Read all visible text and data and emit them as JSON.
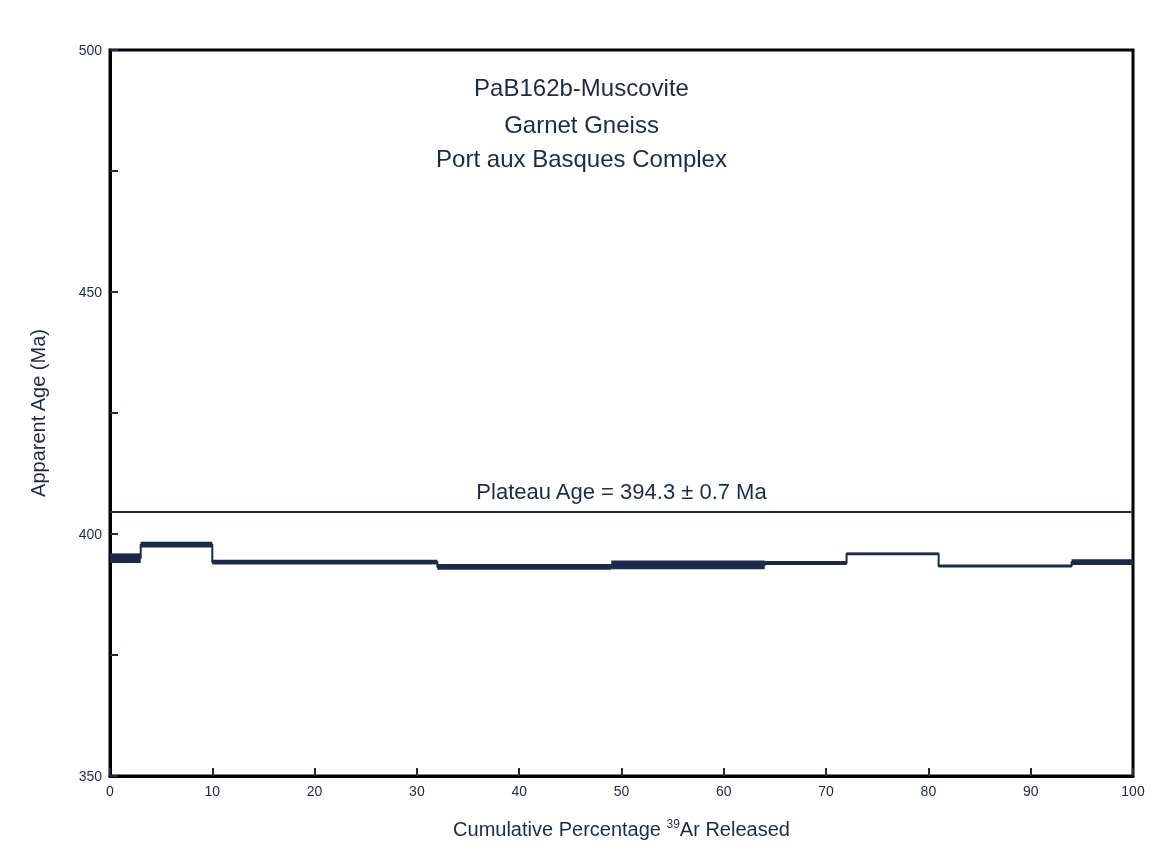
{
  "chart_data": {
    "type": "step",
    "title": "PaB162b-Muscovite",
    "subtitle": "Garnet Gneiss\nPort aux Basques Complex",
    "xlabel": "Cumulative Percentage $^{39}$Ar Released",
    "ylabel": "Apparent Age (Ma)",
    "series": [
      {
        "color": "#1c2a4a",
        "x": [
          0,
          3,
          10,
          32,
          49,
          64,
          72,
          81,
          94,
          100
        ],
        "values": [
          395.0,
          397.8,
          394.2,
          393.2,
          393.6,
          394.0,
          395.9,
          393.4,
          394.2,
          394.2
        ],
        "lower": [
          394.0,
          397.2,
          393.7,
          392.6,
          392.7,
          393.6,
          395.6,
          393.1,
          393.6,
          393.6
        ],
        "upper": [
          396.0,
          398.4,
          394.7,
          393.8,
          394.5,
          394.4,
          396.2,
          393.7,
          394.8,
          394.8
        ]
      }
    ],
    "xlim": [
      0,
      100
    ],
    "xticks": [
      0,
      10,
      20,
      30,
      40,
      50,
      60,
      70,
      80,
      90,
      100
    ],
    "ylim": [
      350,
      500
    ],
    "yticks": [
      350,
      {
        "value": 375,
        "label": null
      },
      400,
      {
        "value": 425,
        "label": null
      },
      450,
      {
        "value": 475,
        "label": null
      },
      500
    ],
    "ref_lines": [
      {
        "axis": "y",
        "value": 404.5,
        "color": "#1c2a4a"
      }
    ],
    "annotations": [
      {
        "text": "Plateau Age = 394.3 ± 0.7 Ma",
        "x": 50,
        "y": 404.5
      }
    ],
    "grid": false,
    "marker": "none",
    "line_style": "solid"
  }
}
